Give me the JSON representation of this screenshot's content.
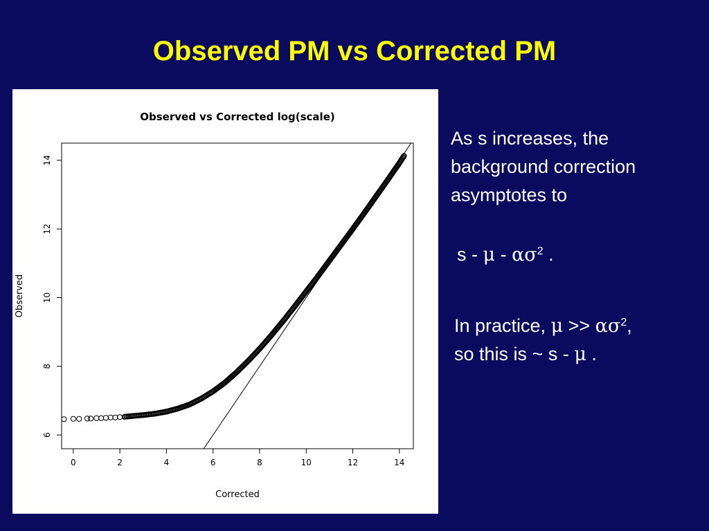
{
  "slide": {
    "title": "Observed PM vs Corrected PM"
  },
  "notes": {
    "para1": "As s  increases, the background correction asymptotes to",
    "formula": {
      "s": "s - ",
      "mu": "μ",
      "sep": " - ",
      "alpha_sigma": "ασ",
      "exp": "2",
      "end": " ."
    },
    "para2": {
      "lead": "In practice, ",
      "mu": "μ",
      "gt": " >> ",
      "alpha_sigma": "ασ",
      "exp": "2",
      "comma": ",",
      "line2_lead": "so this is ~ s - ",
      "mu2": "μ",
      "end": " ."
    }
  },
  "chart_data": {
    "type": "scatter",
    "title": "Observed vs Corrected log(scale)",
    "xlabel": "Corrected",
    "ylabel": "Observed",
    "xlim": [
      -0.5,
      14.6
    ],
    "ylim": [
      5.6,
      14.5
    ],
    "xticks": [
      "0",
      "2",
      "4",
      "6",
      "8",
      "10",
      "12",
      "14"
    ],
    "yticks": [
      "6",
      "8",
      "10",
      "12",
      "14"
    ],
    "grid": false,
    "marker": "open-circle",
    "reference_line": {
      "label": "y = x",
      "slope": 1,
      "intercept": 0
    },
    "x": [
      -0.4,
      0.0,
      0.25,
      0.6,
      0.75,
      1.0,
      1.2,
      1.4,
      1.6,
      1.8,
      2.0,
      2.2,
      2.5,
      3.0,
      3.5,
      4.0,
      4.5,
      5.0,
      5.5,
      6.0,
      6.5,
      7.0,
      7.5,
      8.0,
      8.5,
      9.0,
      9.5,
      10.0,
      10.5,
      11.0,
      11.5,
      12.0,
      12.5,
      13.0,
      13.5,
      14.0,
      14.2
    ],
    "y": [
      6.46,
      6.47,
      6.47,
      6.48,
      6.48,
      6.49,
      6.49,
      6.5,
      6.51,
      6.51,
      6.52,
      6.53,
      6.55,
      6.58,
      6.62,
      6.68,
      6.77,
      6.89,
      7.06,
      7.27,
      7.52,
      7.82,
      8.15,
      8.51,
      8.9,
      9.31,
      9.74,
      10.18,
      10.62,
      11.08,
      11.54,
      12.0,
      12.47,
      12.95,
      13.43,
      13.92,
      14.13
    ]
  }
}
